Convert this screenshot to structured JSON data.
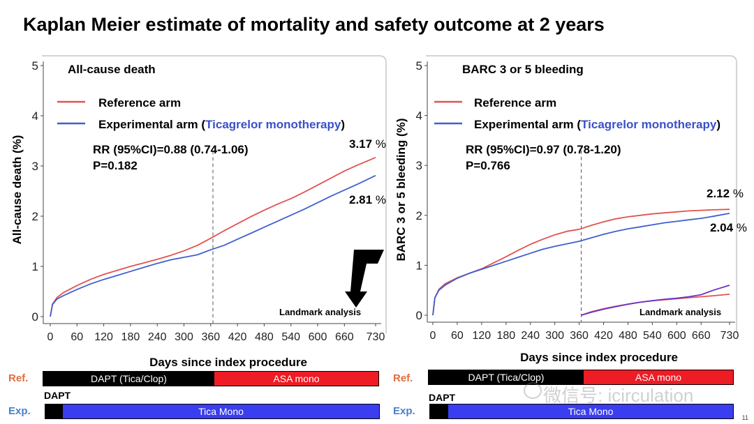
{
  "slide": {
    "title": "Kaplan Meier estimate of mortality and safety outcome at 2 years",
    "page_number": "11",
    "watermark": "微信号: icirculation"
  },
  "timeline": {
    "ref_label": "Ref.",
    "exp_label": "Exp.",
    "dapt_label": "DAPT",
    "ref_segments": [
      "DAPT (Tica/Clop)",
      "ASA mono"
    ],
    "exp_segments": [
      "",
      "Tica Mono"
    ],
    "colors": {
      "black": "#000000",
      "red": "#ee1c25",
      "blue": "#3a3ef0"
    }
  },
  "chart_data": [
    {
      "type": "line",
      "title": "All-cause death",
      "xlabel": "Days since index procedure",
      "ylabel": "All-cause death (%)",
      "xlim": [
        0,
        730
      ],
      "ylim": [
        0,
        5
      ],
      "xticks": [
        0,
        60,
        120,
        180,
        240,
        300,
        360,
        420,
        480,
        540,
        600,
        660,
        730
      ],
      "yticks": [
        0,
        1,
        2,
        3,
        4,
        5
      ],
      "legend": {
        "placement": "top-left",
        "ref": "Reference arm",
        "exp_prefix": "Experimental arm (",
        "exp_highlight": "Ticagrelor monotherapy",
        "exp_suffix": ")"
      },
      "stats": [
        "RR (95%CI)=0.88 (0.74-1.06)",
        "P=0.182"
      ],
      "landmark_day": 365,
      "landmark_label": "Landmark analysis",
      "end_labels": {
        "ref": "3.17 %",
        "exp": "2.81 %"
      },
      "series": [
        {
          "name": "Reference arm",
          "color": "#e0534f",
          "x": [
            0,
            5,
            15,
            30,
            60,
            90,
            120,
            150,
            180,
            210,
            240,
            270,
            300,
            330,
            360,
            390,
            420,
            450,
            480,
            510,
            540,
            570,
            600,
            630,
            660,
            690,
            730
          ],
          "y": [
            0,
            0.25,
            0.38,
            0.48,
            0.62,
            0.74,
            0.84,
            0.92,
            1.0,
            1.07,
            1.14,
            1.22,
            1.31,
            1.42,
            1.56,
            1.71,
            1.85,
            1.99,
            2.12,
            2.24,
            2.35,
            2.48,
            2.62,
            2.76,
            2.9,
            3.02,
            3.17
          ]
        },
        {
          "name": "Experimental arm",
          "color": "#3e5fcf",
          "x": [
            0,
            5,
            15,
            30,
            60,
            90,
            120,
            150,
            180,
            210,
            240,
            270,
            300,
            330,
            360,
            390,
            420,
            450,
            480,
            510,
            540,
            570,
            600,
            630,
            660,
            690,
            730
          ],
          "y": [
            0,
            0.24,
            0.35,
            0.42,
            0.54,
            0.65,
            0.74,
            0.82,
            0.9,
            0.98,
            1.06,
            1.13,
            1.18,
            1.23,
            1.33,
            1.42,
            1.54,
            1.66,
            1.78,
            1.9,
            2.02,
            2.14,
            2.27,
            2.4,
            2.52,
            2.64,
            2.81
          ]
        }
      ]
    },
    {
      "type": "line",
      "title": "BARC 3 or 5 bleeding",
      "xlabel": "Days since index procedure",
      "ylabel": "BARC 3 or 5 bleeding (%)",
      "xlim": [
        0,
        730
      ],
      "ylim": [
        0,
        5
      ],
      "xticks": [
        0,
        60,
        120,
        180,
        240,
        300,
        360,
        420,
        480,
        540,
        600,
        660,
        730
      ],
      "yticks": [
        0,
        1,
        2,
        3,
        4,
        5
      ],
      "legend": {
        "placement": "top-left",
        "ref": "Reference arm",
        "exp_prefix": "Experimental arm (",
        "exp_highlight": "Ticagrelor monotherapy",
        "exp_suffix": ")"
      },
      "stats": [
        "RR (95%CI)=0.97 (0.78-1.20)",
        "P=0.766"
      ],
      "landmark_day": 365,
      "landmark_label": "Landmark analysis",
      "end_labels": {
        "ref": "2.12 %",
        "exp": "2.04 %"
      },
      "series": [
        {
          "name": "Reference arm",
          "color": "#e0534f",
          "x": [
            0,
            5,
            15,
            30,
            60,
            90,
            120,
            150,
            180,
            210,
            240,
            270,
            300,
            330,
            360,
            390,
            420,
            450,
            480,
            510,
            540,
            570,
            600,
            630,
            660,
            690,
            730
          ],
          "y": [
            0,
            0.35,
            0.52,
            0.63,
            0.75,
            0.84,
            0.93,
            1.05,
            1.17,
            1.3,
            1.42,
            1.52,
            1.61,
            1.68,
            1.72,
            1.8,
            1.87,
            1.93,
            1.97,
            2.0,
            2.03,
            2.05,
            2.07,
            2.09,
            2.1,
            2.11,
            2.12
          ]
        },
        {
          "name": "Experimental arm",
          "color": "#3e5fcf",
          "x": [
            0,
            5,
            15,
            30,
            60,
            90,
            120,
            150,
            180,
            210,
            240,
            270,
            300,
            330,
            360,
            390,
            420,
            450,
            480,
            510,
            540,
            570,
            600,
            630,
            660,
            690,
            730
          ],
          "y": [
            0,
            0.35,
            0.5,
            0.6,
            0.74,
            0.84,
            0.92,
            1.0,
            1.08,
            1.16,
            1.24,
            1.32,
            1.38,
            1.43,
            1.48,
            1.55,
            1.62,
            1.68,
            1.73,
            1.77,
            1.81,
            1.85,
            1.88,
            1.91,
            1.94,
            1.98,
            2.04
          ]
        },
        {
          "name": "Reference arm (landmark)",
          "color": "#e0534f",
          "x": [
            365,
            390,
            420,
            450,
            480,
            510,
            540,
            570,
            600,
            630,
            660,
            690,
            730
          ],
          "y": [
            0,
            0.07,
            0.13,
            0.18,
            0.22,
            0.26,
            0.29,
            0.31,
            0.33,
            0.35,
            0.37,
            0.39,
            0.42
          ]
        },
        {
          "name": "Experimental arm (landmark)",
          "color": "#6a32c8",
          "x": [
            365,
            390,
            420,
            450,
            480,
            510,
            540,
            570,
            600,
            630,
            660,
            690,
            730
          ],
          "y": [
            0,
            0.06,
            0.12,
            0.17,
            0.22,
            0.26,
            0.29,
            0.32,
            0.34,
            0.37,
            0.41,
            0.5,
            0.6
          ]
        }
      ]
    }
  ]
}
